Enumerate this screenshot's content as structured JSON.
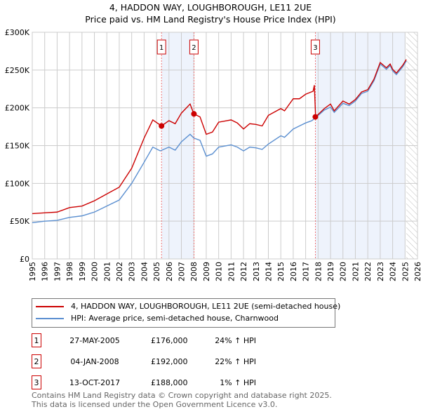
{
  "chart_data": {
    "type": "line",
    "title": "4, HADDON WAY, LOUGHBOROUGH, LE11 2UE",
    "subtitle": "Price paid vs. HM Land Registry's House Price Index (HPI)",
    "xlim": [
      1995,
      2026
    ],
    "ylim": [
      0,
      300000
    ],
    "x_ticks": [
      "1995",
      "1996",
      "1997",
      "1998",
      "1999",
      "2000",
      "2001",
      "2002",
      "2003",
      "2004",
      "2005",
      "2006",
      "2007",
      "2008",
      "2009",
      "2010",
      "2011",
      "2012",
      "2013",
      "2014",
      "2015",
      "2016",
      "2017",
      "2018",
      "2019",
      "2020",
      "2021",
      "2022",
      "2023",
      "2024",
      "2025",
      "2026"
    ],
    "y_ticks": [
      {
        "v": 0,
        "label": "£0"
      },
      {
        "v": 50000,
        "label": "£50K"
      },
      {
        "v": 100000,
        "label": "£100K"
      },
      {
        "v": 150000,
        "label": "£150K"
      },
      {
        "v": 200000,
        "label": "£200K"
      },
      {
        "v": 250000,
        "label": "£250K"
      },
      {
        "v": 300000,
        "label": "£300K"
      }
    ],
    "grid": true,
    "series": [
      {
        "name": "4, HADDON WAY, LOUGHBOROUGH, LE11 2UE (semi-detached house)",
        "color": "#cc0000",
        "x": [
          1995,
          1996,
          1997,
          1998,
          1999,
          2000,
          2001,
          2002,
          2003,
          2004,
          2004.7,
          2005.4,
          2006,
          2006.5,
          2007,
          2007.7,
          2008,
          2008.5,
          2009,
          2009.5,
          2010,
          2011,
          2011.5,
          2012,
          2012.5,
          2013,
          2013.5,
          2014,
          2015,
          2015.3,
          2016,
          2016.5,
          2017,
          2017.6,
          2017.7,
          2017.8,
          2018.5,
          2019,
          2019.3,
          2020,
          2020.5,
          2021,
          2021.5,
          2022,
          2022.5,
          2023,
          2023.5,
          2023.8,
          2024,
          2024.3,
          2024.8,
          2025.1
        ],
        "y": [
          60000,
          61000,
          62000,
          68000,
          70000,
          77000,
          86000,
          95000,
          120000,
          160000,
          184000,
          176000,
          183000,
          179000,
          193000,
          205000,
          192000,
          188000,
          165000,
          168000,
          181000,
          184000,
          180000,
          172000,
          179000,
          178000,
          176000,
          190000,
          199000,
          196000,
          212000,
          212000,
          218000,
          222000,
          230000,
          188000,
          199000,
          205000,
          196000,
          209000,
          205000,
          211000,
          221000,
          224000,
          238000,
          260000,
          253000,
          258000,
          251000,
          246000,
          256000,
          264000
        ]
      },
      {
        "name": "HPI: Average price, semi-detached house, Charnwood",
        "color": "#5b8fd0",
        "x": [
          1995,
          1996,
          1997,
          1998,
          1999,
          2000,
          2001,
          2002,
          2003,
          2004,
          2004.7,
          2005.3,
          2006,
          2006.5,
          2007,
          2007.7,
          2008,
          2008.5,
          2009,
          2009.5,
          2010,
          2011,
          2011.5,
          2012,
          2012.5,
          2013,
          2013.5,
          2014,
          2015,
          2015.3,
          2016,
          2016.5,
          2017,
          2017.5,
          2017.8,
          2018.5,
          2019,
          2019.3,
          2020,
          2020.5,
          2021,
          2021.5,
          2022,
          2022.5,
          2023,
          2023.5,
          2023.8,
          2024,
          2024.3,
          2024.8,
          2025.1
        ],
        "y": [
          48000,
          50000,
          51000,
          55000,
          57000,
          62000,
          70000,
          78000,
          100000,
          128000,
          148000,
          143000,
          148000,
          144000,
          155000,
          165000,
          160000,
          157000,
          136000,
          139000,
          148000,
          151000,
          148000,
          143000,
          148000,
          147000,
          145000,
          152000,
          163000,
          161000,
          172000,
          176000,
          180000,
          183000,
          187000,
          197000,
          201000,
          194000,
          206000,
          203000,
          209000,
          219000,
          222000,
          236000,
          258000,
          251000,
          256000,
          249000,
          244000,
          254000,
          262000
        ]
      }
    ],
    "sales": [
      {
        "num": "1",
        "x": 2005.4,
        "y": 176000,
        "date": "27-MAY-2005",
        "price": "£176,000",
        "hpi": "24% ↑ HPI"
      },
      {
        "num": "2",
        "x": 2008.01,
        "y": 192000,
        "date": "04-JAN-2008",
        "price": "£192,000",
        "hpi": "22% ↑ HPI"
      },
      {
        "num": "3",
        "x": 2017.78,
        "y": 188000,
        "date": "13-OCT-2017",
        "price": "£188,000",
        "hpi": "1% ↑ HPI"
      }
    ],
    "shaded": [
      [
        2005.4,
        2008.01
      ],
      [
        2017.78,
        2025.0
      ]
    ],
    "forecast_from": 2025.1
  },
  "footer": {
    "line1": "Contains HM Land Registry data © Crown copyright and database right 2025.",
    "line2": "This data is licensed under the Open Government Licence v3.0."
  }
}
